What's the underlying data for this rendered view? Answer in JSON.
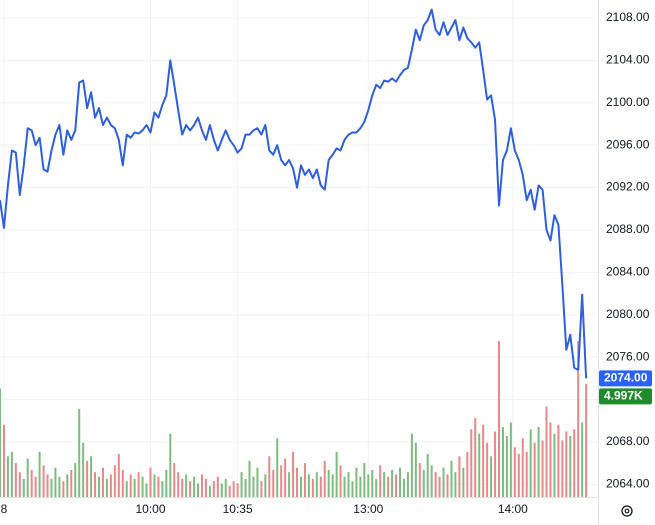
{
  "chart_data": {
    "type": "line",
    "xlim": [
      0,
      151
    ],
    "xticks": [
      {
        "value": 1,
        "label": "8"
      },
      {
        "value": 38,
        "label": "10:00"
      },
      {
        "value": 60,
        "label": "10:35"
      },
      {
        "value": 93,
        "label": "13:00"
      },
      {
        "value": 129.5,
        "label": "14:00"
      }
    ],
    "ylim": [
      2062.8,
      2109.7
    ],
    "yticks": [
      {
        "value": 2064,
        "label": "2064.00"
      },
      {
        "value": 2068,
        "label": "2068.00"
      },
      {
        "value": 2072,
        "label": "2072.00"
      },
      {
        "value": 2076,
        "label": "2076.00"
      },
      {
        "value": 2080,
        "label": "2080.00"
      },
      {
        "value": 2084,
        "label": "2084.00"
      },
      {
        "value": 2088,
        "label": "2088.00"
      },
      {
        "value": 2092,
        "label": "2092.00"
      },
      {
        "value": 2096,
        "label": "2096.00"
      },
      {
        "value": 2100,
        "label": "2100.00"
      },
      {
        "value": 2104,
        "label": "2104.00"
      },
      {
        "value": 2108,
        "label": "2108.00"
      }
    ],
    "vol_ylim": [
      0,
      22
    ],
    "grid": true,
    "series": [
      {
        "color": "#2f5fdc",
        "badge_color": "#2962ff",
        "last_label": "2074.00",
        "values": [
          2090.8,
          2088.2,
          2092.2,
          2095.5,
          2095.3,
          2091.3,
          2094.1,
          2097.6,
          2097.4,
          2096.0,
          2096.7,
          2093.7,
          2093.5,
          2095.5,
          2097.0,
          2097.9,
          2095.1,
          2097.4,
          2096.5,
          2097.4,
          2101.9,
          2102.1,
          2099.5,
          2101.0,
          2098.6,
          2099.5,
          2097.9,
          2098.6,
          2097.9,
          2097.6,
          2096.5,
          2094.1,
          2097.0,
          2096.7,
          2097.2,
          2097.1,
          2097.4,
          2097.9,
          2097.2,
          2099.1,
          2098.6,
          2099.8,
          2100.7,
          2104.0,
          2101.7,
          2099.3,
          2097.0,
          2097.9,
          2097.4,
          2097.9,
          2098.6,
          2097.4,
          2096.5,
          2097.9,
          2096.5,
          2095.5,
          2096.5,
          2097.4,
          2096.5,
          2096.0,
          2095.3,
          2095.7,
          2097.0,
          2097.0,
          2097.4,
          2097.6,
          2097.0,
          2097.9,
          2095.5,
          2095.1,
          2096.0,
          2094.6,
          2094.1,
          2094.6,
          2093.8,
          2092.0,
          2094.1,
          2093.2,
          2093.7,
          2092.9,
          2093.7,
          2092.2,
          2091.8,
          2094.6,
          2095.1,
          2095.7,
          2095.5,
          2096.5,
          2097.0,
          2097.2,
          2097.2,
          2097.6,
          2098.2,
          2099.3,
          2100.7,
          2101.7,
          2101.4,
          2102.1,
          2102.0,
          2102.3,
          2102.0,
          2102.6,
          2103.1,
          2103.3,
          2105.0,
          2106.9,
          2105.9,
          2107.3,
          2107.8,
          2108.8,
          2106.9,
          2106.4,
          2107.6,
          2106.4,
          2107.1,
          2107.8,
          2105.9,
          2107.1,
          2106.1,
          2105.7,
          2105.2,
          2105.7,
          2103.1,
          2100.3,
          2100.7,
          2098.4,
          2090.3,
          2094.6,
          2095.5,
          2097.6,
          2095.5,
          2094.6,
          2093.2,
          2090.8,
          2091.8,
          2089.9,
          2092.2,
          2091.8,
          2088.0,
          2087.0,
          2089.4,
          2088.5,
          2082.8,
          2076.7,
          2078.1,
          2075.0,
          2074.8,
          2081.9,
          2074.0
        ]
      },
      {
        "type": "volume",
        "up_color": "#7dbb7f",
        "down_color": "#e8888a",
        "badge_color": "#1e8c2a",
        "last_label": "4.997K",
        "values": [
          4.8,
          3.2,
          1.8,
          2.0,
          1.5,
          1.1,
          0.8,
          1.7,
          1.2,
          0.9,
          2.0,
          1.4,
          1.0,
          0.8,
          1.3,
          0.9,
          0.7,
          1.0,
          1.2,
          1.5,
          3.9,
          2.4,
          1.6,
          1.8,
          1.1,
          0.9,
          1.3,
          0.8,
          1.0,
          1.4,
          1.9,
          1.2,
          0.7,
          1.0,
          0.8,
          1.1,
          0.9,
          0.6,
          1.3,
          1.0,
          0.9,
          0.7,
          1.2,
          2.8,
          1.5,
          1.1,
          0.8,
          1.0,
          0.7,
          0.9,
          0.6,
          1.0,
          0.8,
          0.5,
          0.7,
          0.9,
          0.6,
          0.8,
          0.5,
          0.7,
          0.6,
          1.1,
          0.8,
          1.6,
          0.9,
          1.3,
          0.7,
          1.0,
          1.8,
          1.2,
          2.6,
          1.4,
          1.7,
          1.1,
          2.0,
          1.3,
          0.9,
          1.5,
          1.0,
          0.8,
          1.1,
          0.9,
          1.6,
          1.2,
          1.0,
          2.0,
          1.4,
          0.9,
          1.1,
          0.7,
          1.3,
          0.9,
          1.5,
          1.0,
          1.2,
          0.8,
          1.4,
          1.1,
          0.9,
          1.2,
          1.0,
          1.3,
          0.8,
          1.1,
          2.8,
          2.4,
          1.5,
          1.2,
          1.9,
          1.4,
          1.1,
          0.9,
          1.3,
          1.0,
          1.6,
          1.1,
          1.8,
          1.3,
          2.0,
          3.0,
          3.5,
          2.8,
          3.2,
          2.4,
          1.8,
          2.9,
          6.9,
          3.1,
          2.7,
          3.3,
          2.2,
          1.9,
          2.6,
          2.0,
          3.0,
          2.4,
          3.1,
          2.5,
          4.0,
          3.3,
          2.8,
          3.2,
          2.5,
          2.9,
          2.7,
          3.0,
          6.9,
          3.3,
          4.997
        ]
      }
    ]
  }
}
